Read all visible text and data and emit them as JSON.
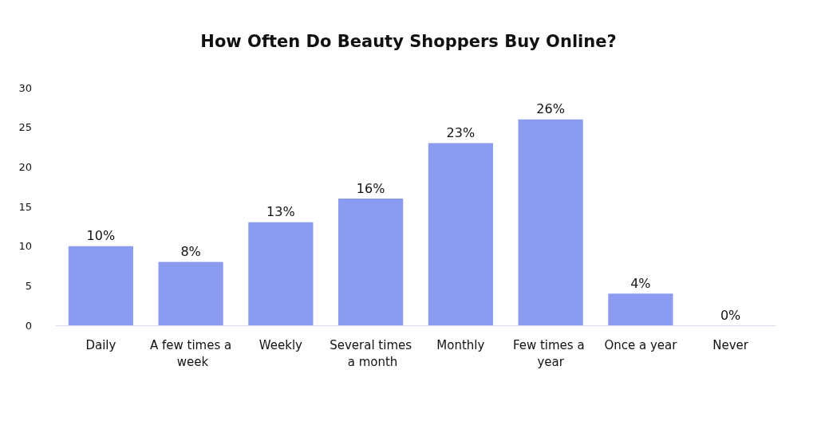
{
  "chart_data": {
    "type": "bar",
    "title": "How Often Do Beauty Shoppers Buy Online?",
    "categories": [
      "Daily",
      "A few times a week",
      "Weekly",
      "Several times a month",
      "Monthly",
      "Few times a year",
      "Once a year",
      "Never"
    ],
    "values": [
      10,
      8,
      13,
      16,
      23,
      26,
      4,
      0
    ],
    "value_labels": [
      "10%",
      "8%",
      "13%",
      "16%",
      "23%",
      "26%",
      "4%",
      "0%"
    ],
    "color": "#8b9bf0",
    "ylim": [
      0,
      30
    ],
    "yticks": [
      0,
      5,
      10,
      15,
      20,
      25,
      30
    ]
  }
}
